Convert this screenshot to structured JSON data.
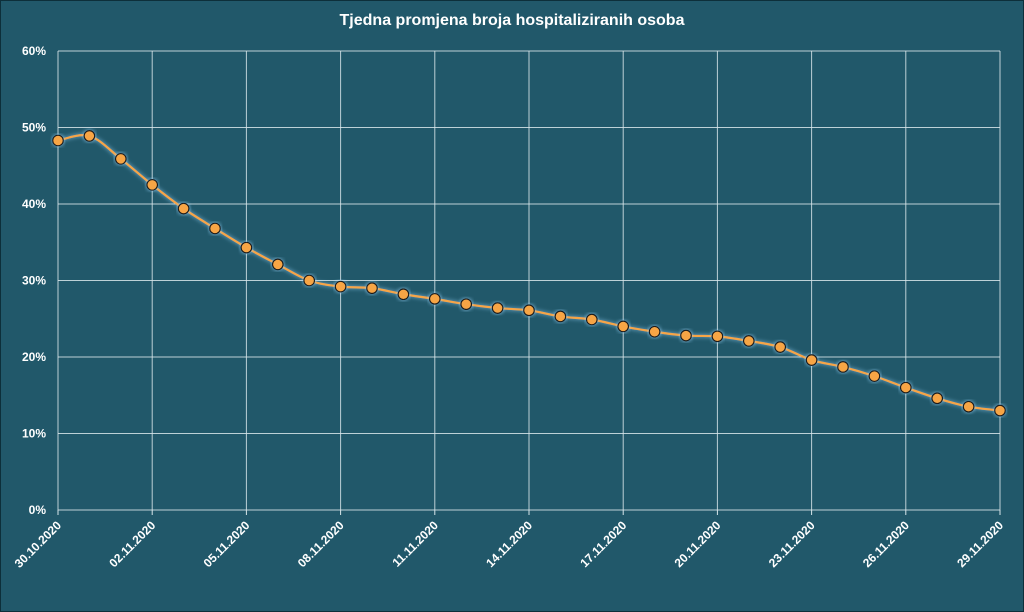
{
  "chart_data": {
    "type": "line",
    "title": "Tjedna promjena broja hospitaliziranih osoba",
    "xlabel": "",
    "ylabel": "",
    "ylim": [
      0,
      60
    ],
    "y_ticks": [
      "0%",
      "10%",
      "20%",
      "30%",
      "40%",
      "50%",
      "60%"
    ],
    "x_tick_labels": [
      "30.10.2020",
      "02.11.2020",
      "05.11.2020",
      "08.11.2020",
      "11.11.2020",
      "14.11.2020",
      "17.11.2020",
      "20.11.2020",
      "23.11.2020",
      "26.11.2020",
      "29.11.2020"
    ],
    "x": [
      "30.10.2020",
      "31.10.2020",
      "01.11.2020",
      "02.11.2020",
      "03.11.2020",
      "04.11.2020",
      "05.11.2020",
      "06.11.2020",
      "07.11.2020",
      "08.11.2020",
      "09.11.2020",
      "10.11.2020",
      "11.11.2020",
      "12.11.2020",
      "13.11.2020",
      "14.11.2020",
      "15.11.2020",
      "16.11.2020",
      "17.11.2020",
      "18.11.2020",
      "19.11.2020",
      "20.11.2020",
      "21.11.2020",
      "22.11.2020",
      "23.11.2020",
      "24.11.2020",
      "25.11.2020",
      "26.11.2020",
      "27.11.2020",
      "28.11.2020",
      "29.11.2020"
    ],
    "series": [
      {
        "values": [
          48.3,
          48.9,
          45.9,
          42.5,
          39.4,
          36.8,
          34.3,
          32.1,
          30.0,
          29.2,
          29.0,
          28.2,
          27.6,
          26.9,
          26.4,
          26.1,
          25.3,
          24.9,
          24.0,
          23.3,
          22.8,
          22.7,
          22.1,
          21.3,
          19.6,
          18.7,
          17.5,
          16.0,
          14.6,
          13.5,
          13.0
        ]
      }
    ],
    "grid": true,
    "legend": "none",
    "colors": {
      "line": "#f7a545",
      "marker_fill": "#f7a545",
      "marker_edge": "#1b1b1b",
      "background": "#21586a",
      "grid": "#d8e6ea"
    }
  }
}
